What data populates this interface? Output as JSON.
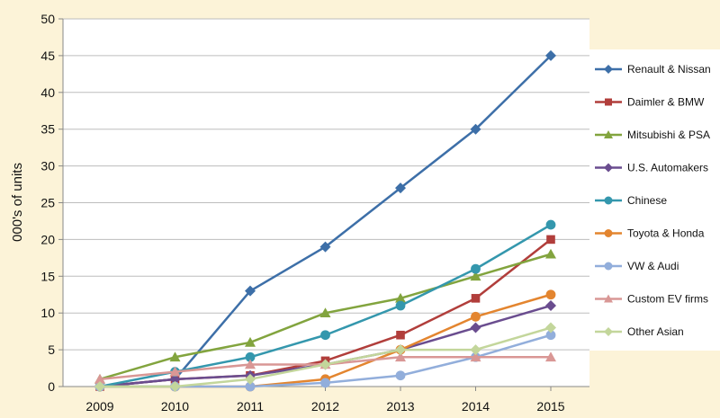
{
  "chart_data": {
    "type": "line",
    "title": "",
    "xlabel": "",
    "ylabel": "000's of units",
    "categories": [
      "2009",
      "2010",
      "2011",
      "2012",
      "2013",
      "2014",
      "2015"
    ],
    "ylim": [
      0,
      50
    ],
    "yticks": [
      0,
      5,
      10,
      15,
      20,
      25,
      30,
      35,
      40,
      45,
      50
    ],
    "grid": "horizontal",
    "legend_position": "right",
    "series": [
      {
        "name": "Renault & Nissan",
        "color": "#3d6fa8",
        "marker": "diamond",
        "values": [
          0,
          1,
          13,
          19,
          27,
          35,
          45
        ]
      },
      {
        "name": "Daimler & BMW",
        "color": "#b13e3b",
        "marker": "square",
        "values": [
          0,
          1,
          1.5,
          3.5,
          7,
          12,
          20
        ]
      },
      {
        "name": "Mitsubishi & PSA",
        "color": "#82a43e",
        "marker": "triangle",
        "values": [
          1,
          4,
          6,
          10,
          12,
          15,
          18
        ]
      },
      {
        "name": "U.S. Automakers",
        "color": "#6a4d8f",
        "marker": "diamond",
        "values": [
          0,
          1,
          1.5,
          3,
          5,
          8,
          11
        ]
      },
      {
        "name": "Chinese",
        "color": "#3497ad",
        "marker": "circle",
        "values": [
          0,
          2,
          4,
          7,
          11,
          16,
          22
        ]
      },
      {
        "name": "Toyota & Honda",
        "color": "#e3852f",
        "marker": "circle",
        "values": [
          0,
          0,
          0,
          1,
          5,
          9.5,
          12.5
        ]
      },
      {
        "name": "VW & Audi",
        "color": "#92aedb",
        "marker": "circle",
        "values": [
          0,
          0,
          0,
          0.5,
          1.5,
          4,
          7
        ]
      },
      {
        "name": "Custom EV firms",
        "color": "#d99795",
        "marker": "triangle",
        "values": [
          1,
          2,
          3,
          3,
          4,
          4,
          4
        ]
      },
      {
        "name": "Other Asian",
        "color": "#c3d69b",
        "marker": "diamond",
        "values": [
          0,
          0,
          1,
          3,
          5,
          5,
          8
        ]
      }
    ]
  }
}
